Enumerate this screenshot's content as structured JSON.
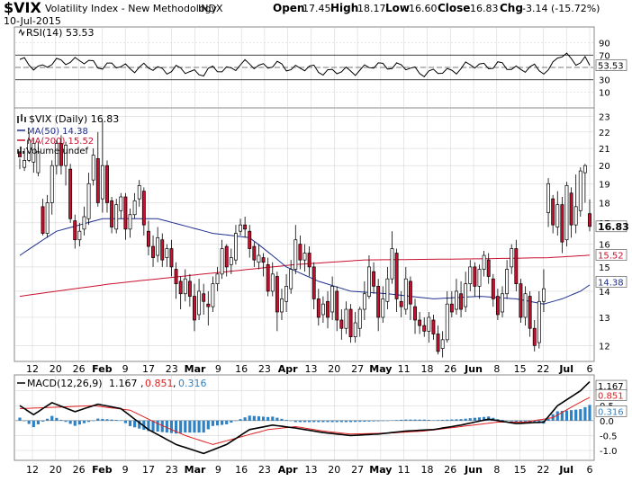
{
  "header": {
    "symbol": "$VIX",
    "name": "Volatility Index - New Methodology",
    "exchange": "INDX",
    "date": "10-Jul-2015",
    "open_label": "Open",
    "open": "17.45",
    "high_label": "High",
    "high": "18.17",
    "low_label": "Low",
    "low": "16.60",
    "close_label": "Close",
    "close": "16.83",
    "chg_label": "Chg",
    "chg": "-3.14 (-15.72%)"
  },
  "colors": {
    "up": "#000000",
    "down": "#c8102e",
    "ma50": "#1f2f8f",
    "ma200": "#c8102e",
    "rsi": "#000000",
    "macd": "#000000",
    "signal": "#e02020",
    "hist": "#2e82c4",
    "grid": "#cfcfcf",
    "panel_border": "#888888"
  },
  "rsi_panel": {
    "legend": "RSI(14) 53.53",
    "value_tag": "53.53",
    "ticks": [
      "90",
      "70",
      "50",
      "30",
      "10"
    ]
  },
  "price_panel": {
    "legend_main": "$VIX (Daily) 16.83",
    "legend_ma50": "MA(50) 14.38",
    "legend_ma200": "MA(200) 15.52",
    "legend_volume": "Volume undef",
    "ticks": [
      "23",
      "22",
      "21",
      "20",
      "19",
      "18",
      "17",
      "16",
      "15",
      "14",
      "13",
      "12"
    ],
    "tag_close": "16.83",
    "tag_ma200": "15.52",
    "tag_ma50": "14.38"
  },
  "macd_panel": {
    "legend_prefix": "MACD(12,26,9)",
    "macd_value": "1.167",
    "signal_value": "0.851",
    "hist_value": "0.316",
    "ticks": [
      "1.0",
      "0.5",
      "0.0",
      "-0.5",
      "-1.0"
    ]
  },
  "x_axis": {
    "labels": [
      "12",
      "20",
      "26",
      "Feb",
      "9",
      "17",
      "23",
      "Mar",
      "9",
      "16",
      "23",
      "Apr",
      "13",
      "20",
      "27",
      "May",
      "11",
      "18",
      "26",
      "Jun",
      "8",
      "15",
      "22",
      "Jul",
      "6"
    ]
  },
  "chart_data": {
    "type": "candlestick",
    "title": "$VIX Volatility Index - New Methodology INDX",
    "period": "Daily",
    "price_ylim": [
      11.5,
      23.5
    ],
    "y_scale": "log",
    "grid": true,
    "last": {
      "date": "10-Jul-2015",
      "open": 17.45,
      "high": 18.17,
      "low": 16.6,
      "close": 16.83,
      "change": -3.14,
      "change_pct": -15.72
    },
    "candles": [
      [
        20.8,
        20.5,
        20.4,
        19.8
      ],
      [
        19.9,
        20.3,
        21.0,
        19.7
      ],
      [
        20.3,
        21.5,
        22.0,
        20.2
      ],
      [
        20.2,
        21.3,
        21.6,
        19.6
      ],
      [
        19.6,
        20.8,
        21.4,
        19.4
      ],
      [
        17.8,
        16.5,
        18.2,
        16.4
      ],
      [
        16.5,
        18.0,
        18.4,
        16.3
      ],
      [
        18.0,
        20.0,
        20.3,
        17.4
      ],
      [
        20.0,
        21.3,
        21.5,
        19.5
      ],
      [
        21.3,
        20.0,
        21.8,
        19.5
      ],
      [
        20.0,
        21.2,
        21.4,
        18.9
      ],
      [
        19.8,
        17.2,
        20.1,
        17.0
      ],
      [
        17.1,
        16.2,
        17.4,
        15.8
      ],
      [
        16.2,
        16.6,
        17.0,
        15.9
      ],
      [
        16.7,
        17.3,
        17.8,
        16.4
      ],
      [
        17.2,
        19.0,
        19.6,
        16.9
      ],
      [
        19.2,
        20.6,
        21.0,
        18.9
      ],
      [
        20.4,
        18.0,
        22.0,
        17.8
      ],
      [
        18.2,
        20.0,
        22.7,
        17.5
      ],
      [
        20.0,
        18.0,
        20.3,
        17.5
      ],
      [
        18.1,
        16.8,
        18.3,
        16.5
      ],
      [
        16.7,
        17.9,
        18.2,
        16.5
      ],
      [
        17.6,
        18.3,
        18.5,
        17.2
      ],
      [
        18.3,
        16.7,
        18.5,
        16.2
      ],
      [
        16.7,
        17.4,
        17.7,
        16.3
      ],
      [
        17.4,
        18.1,
        18.5,
        17.2
      ],
      [
        18.2,
        18.9,
        19.2,
        17.8
      ],
      [
        18.6,
        16.9,
        18.8,
        16.4
      ],
      [
        16.6,
        15.9,
        17.1,
        15.5
      ],
      [
        15.9,
        15.4,
        16.4,
        15.0
      ],
      [
        15.5,
        16.3,
        16.8,
        15.2
      ],
      [
        16.2,
        15.3,
        16.5,
        15.0
      ],
      [
        15.4,
        15.8,
        16.0,
        15.0
      ],
      [
        15.8,
        15.0,
        16.2,
        14.6
      ],
      [
        14.9,
        14.3,
        15.2,
        13.7
      ],
      [
        14.4,
        13.9,
        14.6,
        13.3
      ],
      [
        13.9,
        14.5,
        14.9,
        13.6
      ],
      [
        14.4,
        13.8,
        14.7,
        13.4
      ],
      [
        13.8,
        12.9,
        14.3,
        12.5
      ],
      [
        13.1,
        14.0,
        14.5,
        12.9
      ],
      [
        13.9,
        13.6,
        14.3,
        13.1
      ],
      [
        13.5,
        13.4,
        14.0,
        12.7
      ],
      [
        13.4,
        14.3,
        14.6,
        13.2
      ],
      [
        14.3,
        14.7,
        15.0,
        14.0
      ],
      [
        14.7,
        15.8,
        16.2,
        14.5
      ],
      [
        15.9,
        15.0,
        16.0,
        14.6
      ],
      [
        15.1,
        15.4,
        15.8,
        14.7
      ],
      [
        15.3,
        16.5,
        16.9,
        15.1
      ],
      [
        16.6,
        16.9,
        17.2,
        16.4
      ],
      [
        16.9,
        16.7,
        17.3,
        16.3
      ],
      [
        16.6,
        15.8,
        16.9,
        15.4
      ],
      [
        15.9,
        15.3,
        16.1,
        15.0
      ],
      [
        15.2,
        15.5,
        16.0,
        14.9
      ],
      [
        15.4,
        15.2,
        15.6,
        14.6
      ],
      [
        15.1,
        14.0,
        15.4,
        13.8
      ],
      [
        14.0,
        14.7,
        15.2,
        13.8
      ],
      [
        14.6,
        13.2,
        14.8,
        12.5
      ],
      [
        13.2,
        13.7,
        14.1,
        12.9
      ],
      [
        13.6,
        14.2,
        14.7,
        13.2
      ],
      [
        14.1,
        14.9,
        15.3,
        13.9
      ],
      [
        14.9,
        16.2,
        16.9,
        14.7
      ],
      [
        16.0,
        15.3,
        16.4,
        14.9
      ],
      [
        15.3,
        15.6,
        16.0,
        14.8
      ],
      [
        15.6,
        15.0,
        15.9,
        14.6
      ],
      [
        15.0,
        13.7,
        15.2,
        13.3
      ],
      [
        13.7,
        13.0,
        14.1,
        12.7
      ],
      [
        13.1,
        13.5,
        13.8,
        12.8
      ],
      [
        13.6,
        13.0,
        14.0,
        12.6
      ],
      [
        13.2,
        14.2,
        14.6,
        12.9
      ],
      [
        14.0,
        12.9,
        14.2,
        12.5
      ],
      [
        12.9,
        12.6,
        13.3,
        12.2
      ],
      [
        12.6,
        13.3,
        13.6,
        12.4
      ],
      [
        13.3,
        12.3,
        13.5,
        12.1
      ],
      [
        12.3,
        12.8,
        13.2,
        12.1
      ],
      [
        12.6,
        13.3,
        13.4,
        12.3
      ],
      [
        13.3,
        13.9,
        14.4,
        12.9
      ],
      [
        13.8,
        15.0,
        15.5,
        13.7
      ],
      [
        14.8,
        14.2,
        15.2,
        13.9
      ],
      [
        14.2,
        13.0,
        14.5,
        12.5
      ],
      [
        13.0,
        13.7,
        14.2,
        12.8
      ],
      [
        13.6,
        14.5,
        15.0,
        13.3
      ],
      [
        14.5,
        15.8,
        16.6,
        14.3
      ],
      [
        15.6,
        13.7,
        15.8,
        13.2
      ],
      [
        13.6,
        13.4,
        14.0,
        13.0
      ],
      [
        13.3,
        14.5,
        15.0,
        13.1
      ],
      [
        14.4,
        13.5,
        14.6,
        12.9
      ],
      [
        13.4,
        12.9,
        13.7,
        12.4
      ],
      [
        12.9,
        12.7,
        13.2,
        12.4
      ],
      [
        12.7,
        12.5,
        13.0,
        12.3
      ],
      [
        12.5,
        13.0,
        13.2,
        12.1
      ],
      [
        12.9,
        12.4,
        13.1,
        12.2
      ],
      [
        12.4,
        11.8,
        12.7,
        11.7
      ],
      [
        11.9,
        12.2,
        12.5,
        11.6
      ],
      [
        12.2,
        13.5,
        14.0,
        12.1
      ],
      [
        13.5,
        13.2,
        14.0,
        13.0
      ],
      [
        13.3,
        14.0,
        14.5,
        13.1
      ],
      [
        13.9,
        13.3,
        14.4,
        13.0
      ],
      [
        13.4,
        14.3,
        14.8,
        13.2
      ],
      [
        14.3,
        15.0,
        15.3,
        14.0
      ],
      [
        15.0,
        14.2,
        15.2,
        13.8
      ],
      [
        14.2,
        14.9,
        15.1,
        13.7
      ],
      [
        14.9,
        15.5,
        15.7,
        14.6
      ],
      [
        15.3,
        14.6,
        15.6,
        14.3
      ],
      [
        14.5,
        13.7,
        14.7,
        13.4
      ],
      [
        13.8,
        13.1,
        14.1,
        12.9
      ],
      [
        13.2,
        13.9,
        14.2,
        13.0
      ],
      [
        13.9,
        14.9,
        15.3,
        13.7
      ],
      [
        15.0,
        15.8,
        16.0,
        14.7
      ],
      [
        15.8,
        14.3,
        16.2,
        14.0
      ],
      [
        14.3,
        13.0,
        14.5,
        12.8
      ],
      [
        13.0,
        13.9,
        14.2,
        12.7
      ],
      [
        13.8,
        12.6,
        14.0,
        12.3
      ],
      [
        12.6,
        12.0,
        12.9,
        11.8
      ],
      [
        12.1,
        13.6,
        14.0,
        11.9
      ],
      [
        13.6,
        14.1,
        14.9,
        13.2
      ],
      [
        17.5,
        19.0,
        19.3,
        16.8
      ],
      [
        18.2,
        16.9,
        18.4,
        16.5
      ],
      [
        16.8,
        17.9,
        18.6,
        16.4
      ],
      [
        17.9,
        16.1,
        18.3,
        15.6
      ],
      [
        16.2,
        18.9,
        19.1,
        15.9
      ],
      [
        18.5,
        16.9,
        18.8,
        16.3
      ],
      [
        16.9,
        17.8,
        19.5,
        16.5
      ],
      [
        17.6,
        19.7,
        19.9,
        17.3
      ],
      [
        19.6,
        20.0,
        20.1,
        18.0
      ],
      [
        17.45,
        16.83,
        18.17,
        16.6
      ]
    ],
    "ma50_anchors": [
      [
        0,
        15.5
      ],
      [
        8,
        16.6
      ],
      [
        18,
        17.2
      ],
      [
        30,
        17.2
      ],
      [
        42,
        16.5
      ],
      [
        50,
        16.3
      ],
      [
        58,
        15.0
      ],
      [
        65,
        14.4
      ],
      [
        72,
        14.0
      ],
      [
        80,
        13.9
      ],
      [
        90,
        13.7
      ],
      [
        100,
        13.8
      ],
      [
        108,
        13.7
      ],
      [
        114,
        13.5
      ],
      [
        118,
        13.7
      ],
      [
        122,
        14.0
      ],
      [
        125,
        14.38
      ]
    ],
    "ma200_anchors": [
      [
        0,
        13.8
      ],
      [
        20,
        14.3
      ],
      [
        45,
        14.8
      ],
      [
        60,
        15.1
      ],
      [
        75,
        15.3
      ],
      [
        100,
        15.35
      ],
      [
        115,
        15.4
      ],
      [
        125,
        15.52
      ]
    ],
    "rsi_anchors": [
      [
        0,
        60
      ],
      [
        5,
        50
      ],
      [
        10,
        63
      ],
      [
        20,
        52
      ],
      [
        30,
        48
      ],
      [
        40,
        42
      ],
      [
        50,
        55
      ],
      [
        60,
        50
      ],
      [
        70,
        42
      ],
      [
        80,
        55
      ],
      [
        90,
        40
      ],
      [
        100,
        55
      ],
      [
        110,
        48
      ],
      [
        115,
        45
      ],
      [
        117,
        70
      ],
      [
        120,
        62
      ],
      [
        122,
        60
      ],
      [
        124,
        68
      ],
      [
        125,
        53.53
      ]
    ],
    "macd_anchors": [
      [
        0,
        0.5
      ],
      [
        3,
        0.2
      ],
      [
        7,
        0.6
      ],
      [
        12,
        0.3
      ],
      [
        17,
        0.55
      ],
      [
        22,
        0.4
      ],
      [
        28,
        -0.3
      ],
      [
        34,
        -0.8
      ],
      [
        40,
        -1.1
      ],
      [
        45,
        -0.8
      ],
      [
        50,
        -0.3
      ],
      [
        55,
        -0.15
      ],
      [
        60,
        -0.25
      ],
      [
        66,
        -0.4
      ],
      [
        72,
        -0.5
      ],
      [
        78,
        -0.45
      ],
      [
        84,
        -0.35
      ],
      [
        90,
        -0.3
      ],
      [
        96,
        -0.15
      ],
      [
        102,
        0.05
      ],
      [
        108,
        -0.1
      ],
      [
        114,
        -0.05
      ],
      [
        117,
        0.5
      ],
      [
        120,
        0.8
      ],
      [
        122,
        1.0
      ],
      [
        124,
        1.3
      ],
      [
        125,
        1.167
      ]
    ],
    "signal_anchors": [
      [
        0,
        0.4
      ],
      [
        8,
        0.45
      ],
      [
        16,
        0.5
      ],
      [
        24,
        0.35
      ],
      [
        30,
        -0.1
      ],
      [
        36,
        -0.5
      ],
      [
        42,
        -0.8
      ],
      [
        48,
        -0.55
      ],
      [
        54,
        -0.3
      ],
      [
        60,
        -0.2
      ],
      [
        66,
        -0.35
      ],
      [
        72,
        -0.45
      ],
      [
        80,
        -0.42
      ],
      [
        88,
        -0.35
      ],
      [
        96,
        -0.2
      ],
      [
        104,
        -0.05
      ],
      [
        110,
        -0.05
      ],
      [
        116,
        0.1
      ],
      [
        120,
        0.45
      ],
      [
        123,
        0.7
      ],
      [
        125,
        0.851
      ]
    ]
  }
}
